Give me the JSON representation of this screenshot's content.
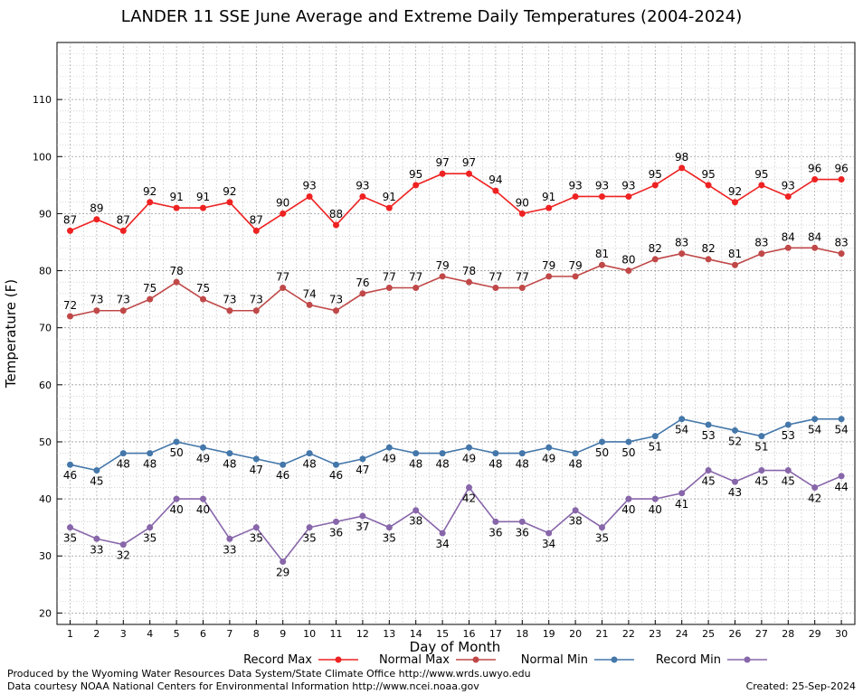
{
  "chart_data": {
    "type": "line",
    "title": "LANDER 11 SSE June Average and Extreme Daily Temperatures (2004-2024)",
    "xlabel": "Day of Month",
    "ylabel": "Temperature (F)",
    "ylim": [
      18,
      120
    ],
    "yticks": [
      20,
      30,
      40,
      50,
      60,
      70,
      80,
      90,
      100,
      110
    ],
    "x": [
      1,
      2,
      3,
      4,
      5,
      6,
      7,
      8,
      9,
      10,
      11,
      12,
      13,
      14,
      15,
      16,
      17,
      18,
      19,
      20,
      21,
      22,
      23,
      24,
      25,
      26,
      27,
      28,
      29,
      30
    ],
    "grid": true,
    "legend_position": "bottom",
    "series": [
      {
        "name": "Record Max",
        "color": "#ee2222",
        "values": [
          87,
          89,
          87,
          92,
          91,
          91,
          92,
          87,
          90,
          93,
          88,
          93,
          91,
          95,
          97,
          97,
          94,
          90,
          91,
          93,
          93,
          93,
          95,
          98,
          95,
          92,
          95,
          93,
          96,
          96
        ]
      },
      {
        "name": "Normal Max",
        "color": "#c04848",
        "values": [
          72,
          73,
          73,
          75,
          78,
          75,
          73,
          73,
          77,
          74,
          73,
          76,
          77,
          77,
          79,
          78,
          77,
          77,
          79,
          79,
          81,
          80,
          82,
          83,
          82,
          81,
          83,
          84,
          84,
          83
        ]
      },
      {
        "name": "Normal Min",
        "color": "#4477aa",
        "values": [
          46,
          45,
          48,
          48,
          50,
          49,
          48,
          47,
          46,
          48,
          46,
          47,
          49,
          48,
          48,
          49,
          48,
          48,
          49,
          48,
          50,
          50,
          51,
          54,
          53,
          52,
          51,
          53,
          54,
          54
        ]
      },
      {
        "name": "Record Min",
        "color": "#8866aa",
        "values": [
          35,
          33,
          32,
          35,
          40,
          40,
          33,
          35,
          29,
          35,
          36,
          37,
          35,
          38,
          34,
          42,
          36,
          36,
          34,
          38,
          35,
          40,
          40,
          41,
          45,
          43,
          45,
          45,
          42,
          44
        ]
      }
    ]
  },
  "footer": {
    "credit_line_1": "Produced by the Wyoming Water Resources Data System/State Climate Office http://www.wrds.uwyo.edu",
    "credit_line_2": "Data courtesy NOAA National Centers for Environmental Information http://www.ncei.noaa.gov",
    "created": "Created:  25-Sep-2024"
  }
}
